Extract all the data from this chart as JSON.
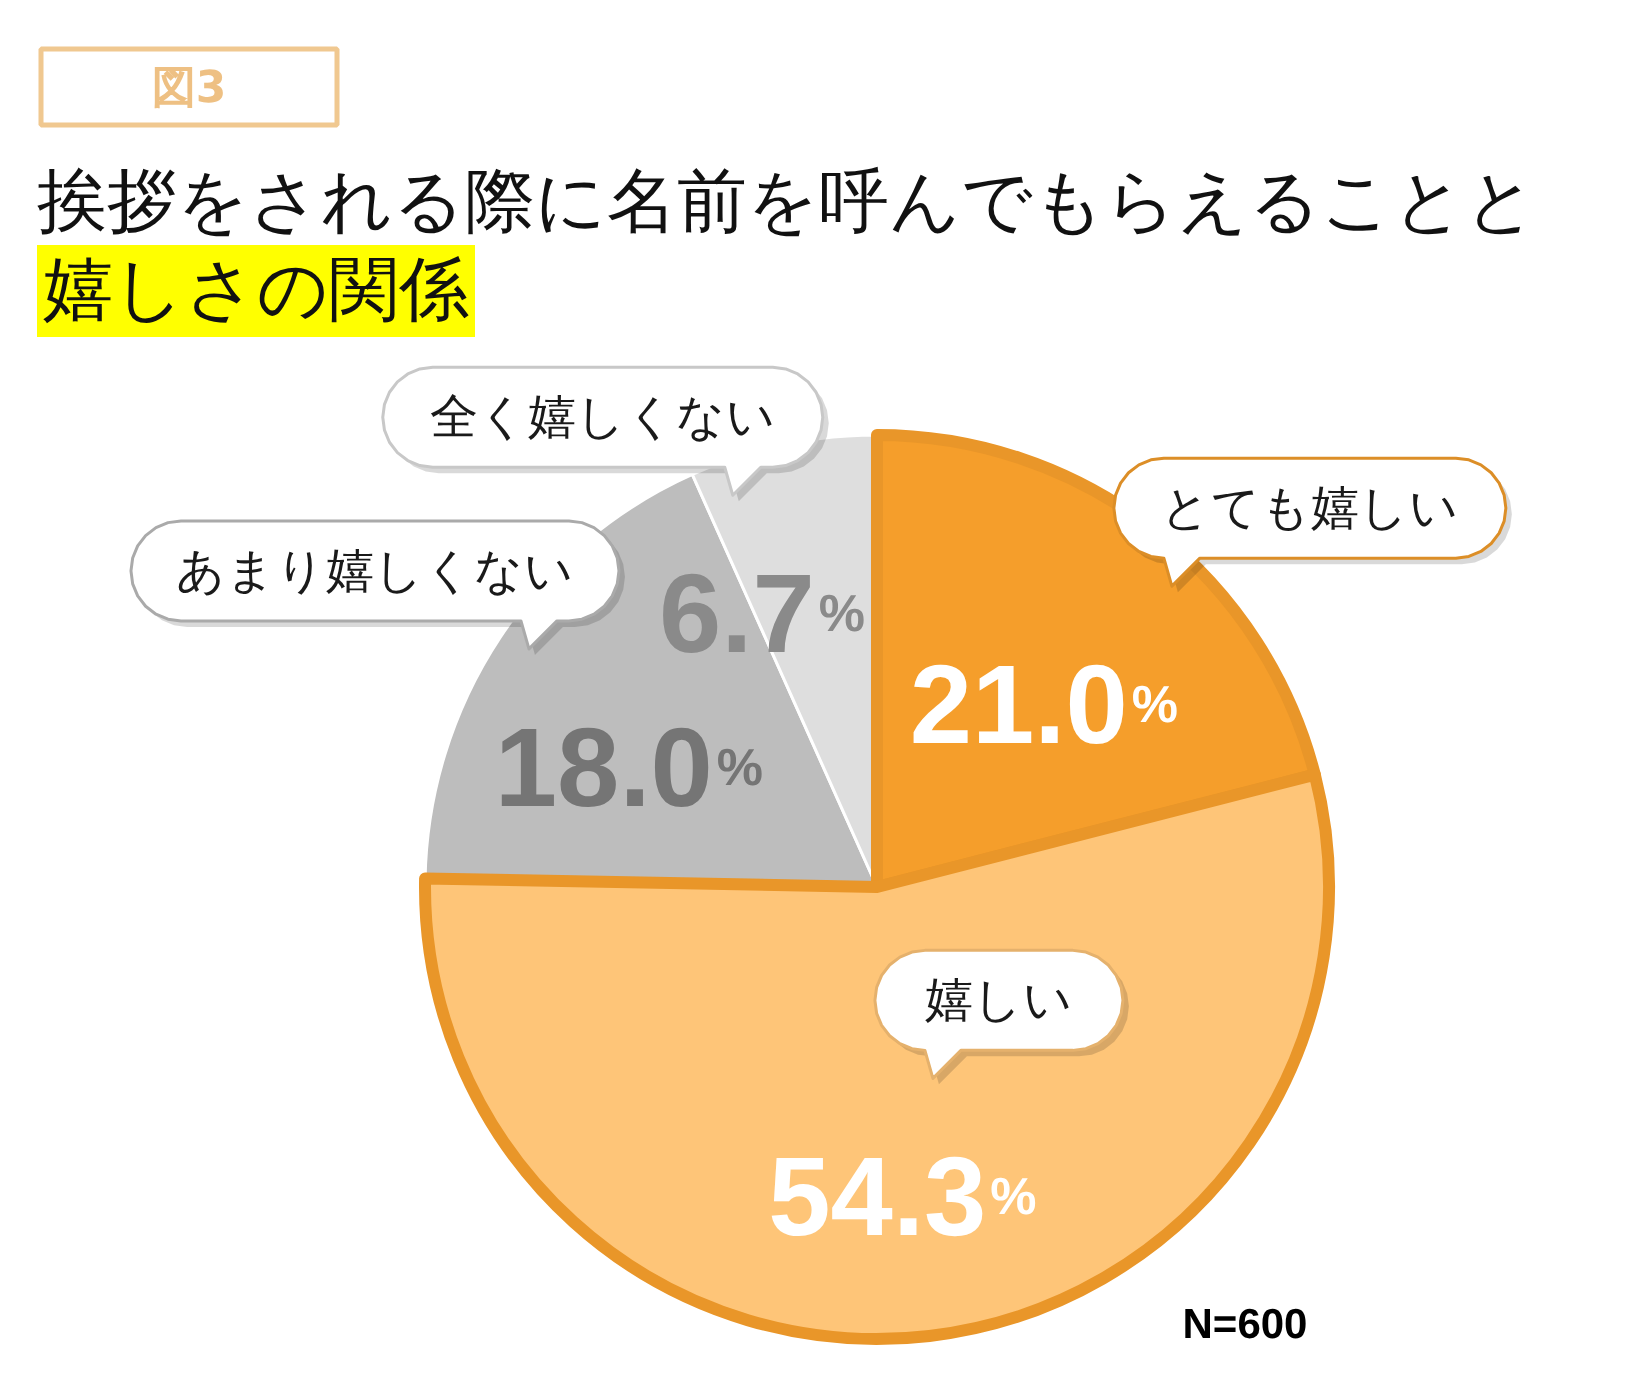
{
  "chart_data": {
    "type": "pie",
    "title": "挨拶をされる際に名前を呼んでもらえることと嬉しさの関係",
    "categories": [
      "とても嬉しい",
      "嬉しい",
      "あまり嬉しくない",
      "全く嬉しくない"
    ],
    "values": [
      21.0,
      54.3,
      18.0,
      6.7
    ],
    "colors": [
      "#f59e2b",
      "#fec578",
      "#bdbdbd",
      "#dedede"
    ],
    "value_labels": [
      "21.0%",
      "54.3%",
      "18.0%",
      "6.7%"
    ],
    "annotations": [
      "図3",
      "N=600"
    ]
  }
}
